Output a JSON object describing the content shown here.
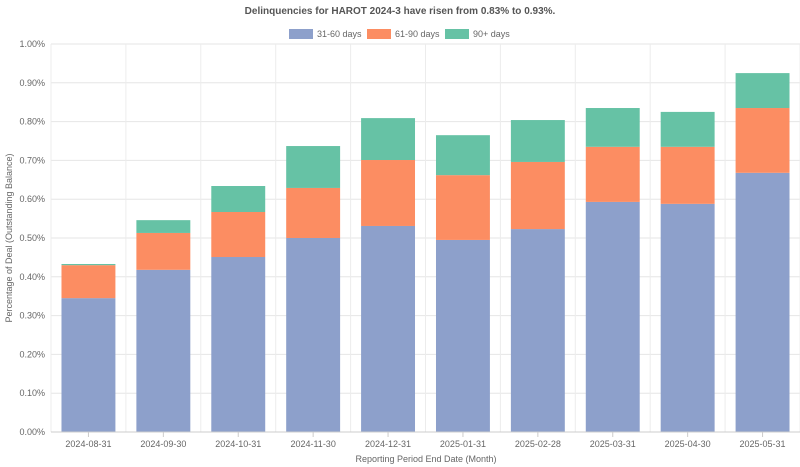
{
  "chart_data": {
    "type": "bar",
    "stacked": true,
    "title": "Delinquencies for HAROT 2024-3 have risen from 0.83% to 0.93%.",
    "xlabel": "Reporting Period End Date (Month)",
    "ylabel": "Percentage of Deal (Outstanding Balance)",
    "ylim": [
      0,
      1.0
    ],
    "yticks": [
      "0.00%",
      "0.10%",
      "0.20%",
      "0.30%",
      "0.40%",
      "0.50%",
      "0.60%",
      "0.70%",
      "0.80%",
      "0.90%",
      "1.00%"
    ],
    "grid": true,
    "legend_position": "top-center",
    "categories": [
      "2024-08-31",
      "2024-09-30",
      "2024-10-31",
      "2024-11-30",
      "2024-12-31",
      "2025-01-31",
      "2025-02-28",
      "2025-03-31",
      "2025-04-30",
      "2025-05-31"
    ],
    "series": [
      {
        "name": "31-60 days",
        "color": "#8da0cb",
        "values": [
          0.345,
          0.418,
          0.451,
          0.5,
          0.531,
          0.495,
          0.523,
          0.593,
          0.588,
          0.668
        ]
      },
      {
        "name": "61-90 days",
        "color": "#fc8d62",
        "values": [
          0.085,
          0.095,
          0.116,
          0.129,
          0.17,
          0.167,
          0.173,
          0.142,
          0.147,
          0.167
        ]
      },
      {
        "name": "90+ days",
        "color": "#66c2a5",
        "values": [
          0.003,
          0.033,
          0.067,
          0.108,
          0.108,
          0.103,
          0.108,
          0.1,
          0.09,
          0.09
        ]
      }
    ]
  }
}
